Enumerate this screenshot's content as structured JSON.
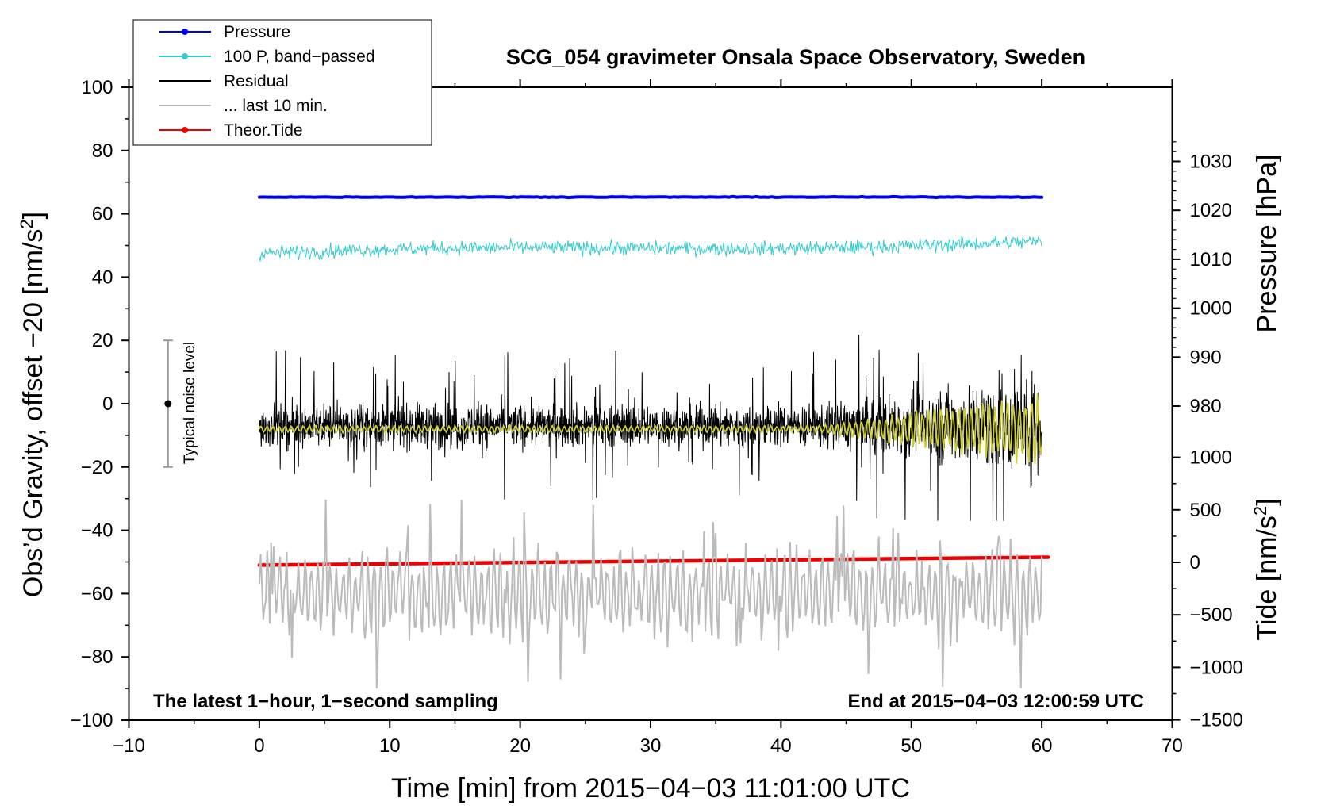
{
  "chart_data": {
    "type": "line",
    "title": "SCG_054 gravimeter Onsala Space Observatory, Sweden",
    "xlabel": "Time [min] from 2015−04−03 11:01:00 UTC",
    "ylabel_left_main": "Obs’d Gravity, offset −20 [nm/s",
    "ylabel_left_sup": "2",
    "ylabel_left_end": "]",
    "ylabel_right_top": "Pressure [hPa]",
    "ylabel_right_bottom_main": "Tide [nm/s",
    "ylabel_right_bottom_sup": "2",
    "ylabel_right_bottom_end": "]",
    "xlim": [
      -10,
      70
    ],
    "ylim": [
      -100,
      100
    ],
    "x_ticks": [
      -10,
      0,
      10,
      20,
      30,
      40,
      50,
      60,
      70
    ],
    "x_tick_labels": [
      "−10",
      "0",
      "10",
      "20",
      "30",
      "40",
      "50",
      "60",
      "70"
    ],
    "y_ticks": [
      -100,
      -80,
      -60,
      -40,
      -20,
      0,
      20,
      40,
      60,
      80,
      100
    ],
    "y_tick_labels": [
      "−100",
      "−80",
      "−60",
      "−40",
      "−20",
      "0",
      "20",
      "40",
      "60",
      "80",
      "100"
    ],
    "pressure_ticks": [
      980,
      990,
      1000,
      1010,
      1020,
      1030
    ],
    "pressure_tick_labels": [
      "980",
      "990",
      "1000",
      "1010",
      "1020",
      "1030"
    ],
    "tide_ticks": [
      -1500,
      -1000,
      -500,
      0,
      500,
      1000
    ],
    "tide_tick_labels": [
      "−1500",
      "−1000",
      "−500",
      "0",
      "500",
      "1000"
    ],
    "annotation_left": "The latest 1−hour, 1−second sampling",
    "annotation_right": "End at 2015−04−03 12:00:59 UTC",
    "noise_label": "Typical noise level",
    "noise_bar": {
      "x": -7,
      "center": 0,
      "half_range": 20
    },
    "legend": [
      {
        "label": "Pressure",
        "color": "#0000ee",
        "marker": true
      },
      {
        "label": "100 P, band−passed",
        "color": "#33cccc",
        "marker": true
      },
      {
        "label": "Residual",
        "color": "#000000",
        "marker": false
      },
      {
        "label": "... last 10 min.",
        "color": "#bbbbbb",
        "marker": false
      },
      {
        "label": "Theor.Tide",
        "color": "#ee0000",
        "marker": true
      }
    ],
    "series": [
      {
        "name": "Pressure",
        "color": "#0000ee",
        "x_range": [
          0,
          60
        ],
        "level": 65.3,
        "level_end": 65.3
      },
      {
        "name": "100 P, band−passed",
        "color": "#33cccc",
        "x_range": [
          0,
          60
        ],
        "start_level": 47.5,
        "end_level": 51,
        "amplitude": 2.2
      },
      {
        "name": "Residual",
        "color": "#000000",
        "x_range": [
          0,
          60
        ],
        "center": -7,
        "amplitude": 8,
        "peak_max": 23,
        "peak_min": -37
      },
      {
        "name": "Residual smoothed",
        "color": "#cccc33",
        "x_range": [
          0,
          60
        ],
        "center": -8
      },
      {
        "name": "... last 10 min.",
        "color": "#bbbbbb",
        "x_range": [
          0,
          60
        ],
        "center": -60,
        "max": -30,
        "min": -90
      },
      {
        "name": "Theor.Tide",
        "color": "#ee0000",
        "x_range": [
          0,
          60.5
        ],
        "start": -51,
        "end": -48.5
      }
    ]
  }
}
